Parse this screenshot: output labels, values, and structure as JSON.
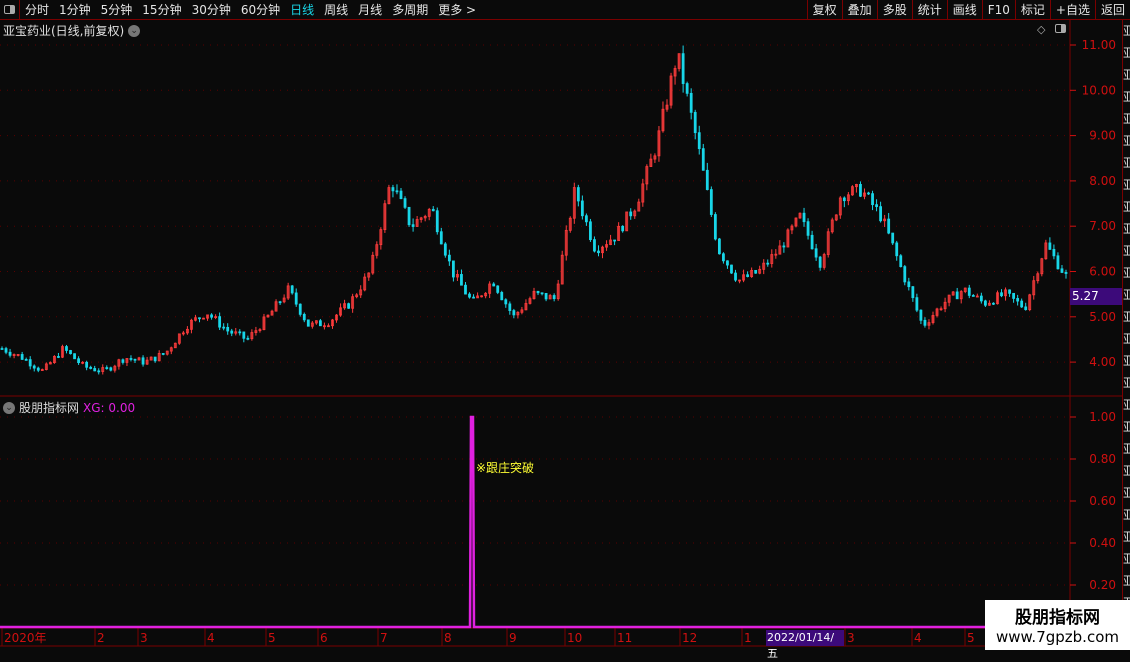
{
  "topbar": {
    "periods": [
      "分时",
      "1分钟",
      "5分钟",
      "15分钟",
      "30分钟",
      "60分钟",
      "日线",
      "周线",
      "月线",
      "多周期",
      "更多 >"
    ],
    "active": "日线",
    "right_buttons": [
      "复权",
      "叠加",
      "多股",
      "统计",
      "画线",
      "F10",
      "标记",
      "+自选",
      "返回"
    ]
  },
  "stock_title": "亚宝药业(日线,前复权)",
  "price_axis": {
    "ticks": [
      "11.00",
      "10.00",
      "9.00",
      "8.00",
      "7.00",
      "6.00",
      "5.00",
      "4.00"
    ],
    "current_price": "5.27"
  },
  "indicator": {
    "title": "股朋指标网",
    "xg_label": "XG: 0.00",
    "annotation": "※跟庄突破",
    "ticks": [
      "1.00",
      "0.80",
      "0.60",
      "0.40",
      "0.20"
    ],
    "color": "#e020e0"
  },
  "time_axis": {
    "labels": [
      "2020年",
      "2",
      "3",
      "4",
      "5",
      "6",
      "7",
      "8",
      "9",
      "10",
      "11",
      "12",
      "1",
      "3",
      "4",
      "5"
    ],
    "cursor_date": "2022/01/14/五"
  },
  "watermark": {
    "line1": "股朋指标网",
    "line2": "www.7gpzb.com"
  },
  "colors": {
    "up": "#ff3c3c",
    "down": "#19d6e8",
    "axis": "#d01010",
    "signal": "#e020e0"
  },
  "price_path": [
    4.3,
    4.1,
    3.8,
    4.3,
    3.9,
    3.8,
    4.1,
    4.0,
    4.2,
    4.8,
    5.1,
    4.7,
    4.5,
    5.0,
    5.6,
    4.8,
    4.9,
    5.3,
    6.0,
    8.0,
    7.0,
    7.4,
    6.0,
    5.3,
    5.8,
    5.0,
    5.5,
    5.4,
    7.8,
    6.5,
    6.8,
    7.5,
    8.8,
    10.8,
    8.8,
    6.5,
    5.8,
    6.0,
    6.5,
    7.2,
    6.2,
    7.7,
    7.8,
    7.2,
    6.0,
    4.8,
    5.3,
    5.6,
    5.3,
    5.5,
    5.2,
    6.6,
    5.9
  ]
}
